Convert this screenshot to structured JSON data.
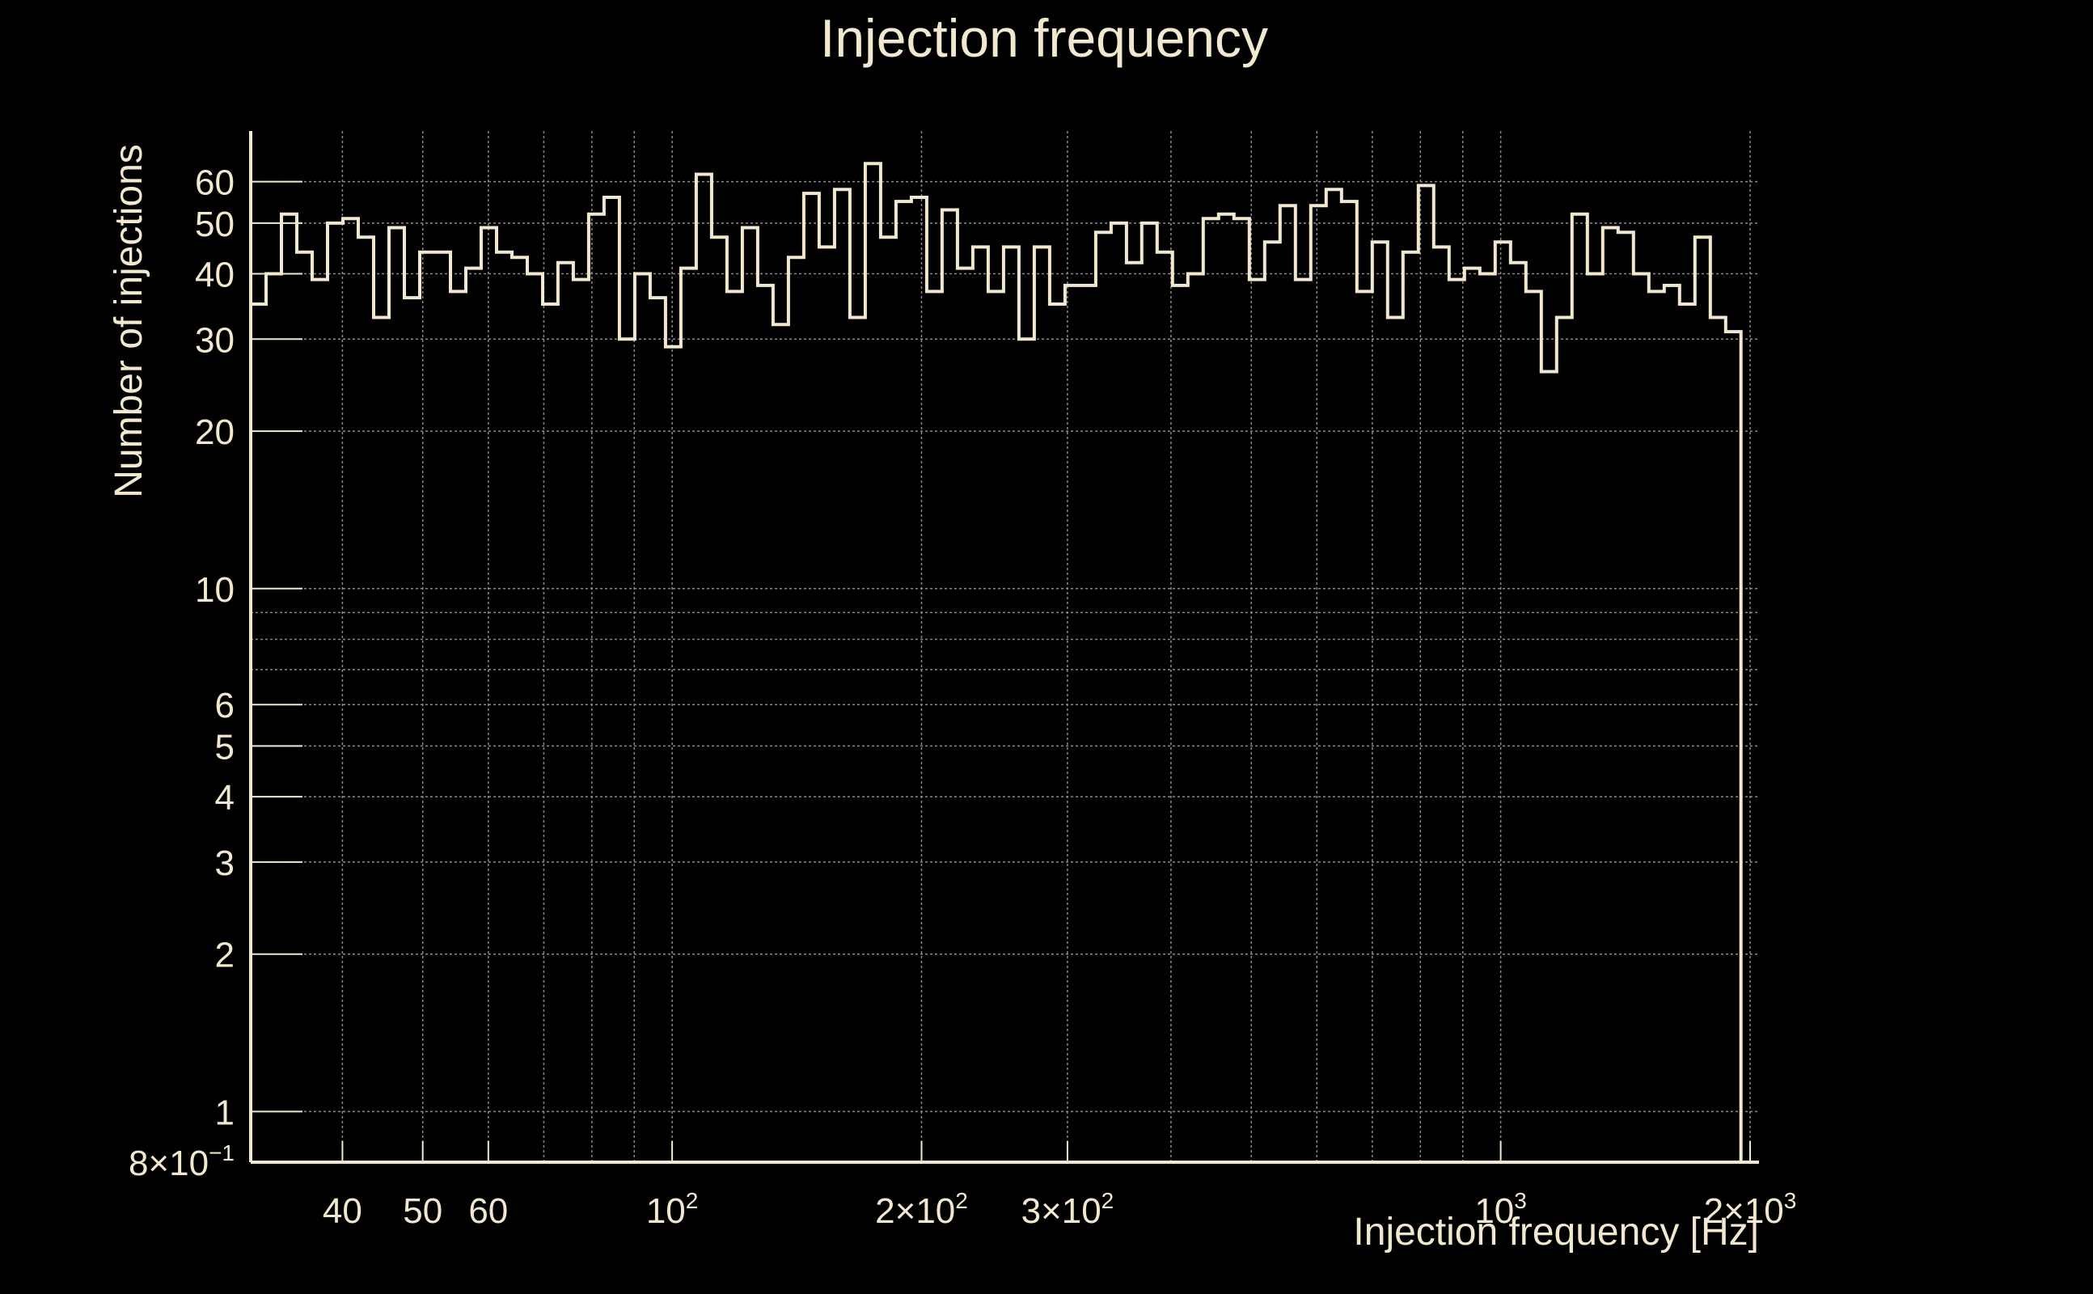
{
  "chart_data": {
    "type": "histogram",
    "title": "Injection frequency",
    "xlabel": "Injection frequency [Hz]",
    "ylabel": "Number of injections",
    "x_scale": "log",
    "y_scale": "log",
    "xlim": [
      31,
      2050
    ],
    "ylim": [
      0.8,
      75
    ],
    "grid": true,
    "colors": {
      "background": "#000000",
      "foreground": "#f2e8cf",
      "grid": "#8a8a8a"
    },
    "x_ticks": [
      {
        "value": 40,
        "mantissa": "40",
        "exp": ""
      },
      {
        "value": 50,
        "mantissa": "50",
        "exp": ""
      },
      {
        "value": 60,
        "mantissa": "60",
        "exp": ""
      },
      {
        "value": 100,
        "mantissa": "10",
        "exp": "2"
      },
      {
        "value": 200,
        "mantissa": "2×10",
        "exp": "2"
      },
      {
        "value": 300,
        "mantissa": "3×10",
        "exp": "2"
      },
      {
        "value": 1000,
        "mantissa": "10",
        "exp": "3"
      },
      {
        "value": 2000,
        "mantissa": "2×10",
        "exp": "3"
      }
    ],
    "x_minor_ticks": [
      70,
      80,
      90,
      400,
      500,
      600,
      700,
      800,
      900
    ],
    "y_ticks": [
      {
        "value": 0.8,
        "mantissa": "8×10",
        "exp": "−1"
      },
      {
        "value": 1,
        "mantissa": "1",
        "exp": ""
      },
      {
        "value": 2,
        "mantissa": "2",
        "exp": ""
      },
      {
        "value": 3,
        "mantissa": "3",
        "exp": ""
      },
      {
        "value": 4,
        "mantissa": "4",
        "exp": ""
      },
      {
        "value": 5,
        "mantissa": "5",
        "exp": ""
      },
      {
        "value": 6,
        "mantissa": "6",
        "exp": ""
      },
      {
        "value": 10,
        "mantissa": "10",
        "exp": ""
      },
      {
        "value": 20,
        "mantissa": "20",
        "exp": ""
      },
      {
        "value": 30,
        "mantissa": "30",
        "exp": ""
      },
      {
        "value": 40,
        "mantissa": "40",
        "exp": ""
      },
      {
        "value": 50,
        "mantissa": "50",
        "exp": ""
      },
      {
        "value": 60,
        "mantissa": "60",
        "exp": ""
      }
    ],
    "y_minor_ticks": [
      7,
      8,
      9
    ],
    "bins": {
      "first_edge": 31,
      "last_edge": 1950,
      "counts": [
        35,
        40,
        52,
        44,
        39,
        50,
        51,
        47,
        33,
        49,
        36,
        44,
        44,
        37,
        41,
        49,
        44,
        43,
        40,
        35,
        42,
        39,
        52,
        56,
        30,
        40,
        36,
        29,
        41,
        62,
        47,
        37,
        49,
        38,
        32,
        43,
        57,
        45,
        58,
        33,
        65,
        47,
        55,
        56,
        37,
        53,
        41,
        45,
        37,
        45,
        30,
        45,
        35,
        38,
        38,
        48,
        50,
        42,
        50,
        44,
        38,
        40,
        51,
        52,
        51,
        39,
        46,
        54,
        39,
        54,
        58,
        55,
        37,
        46,
        33,
        44,
        59,
        45,
        39,
        41,
        40,
        46,
        42,
        37,
        26,
        33,
        52,
        40,
        49,
        48,
        40,
        37,
        38,
        35,
        47,
        33,
        31
      ]
    }
  }
}
